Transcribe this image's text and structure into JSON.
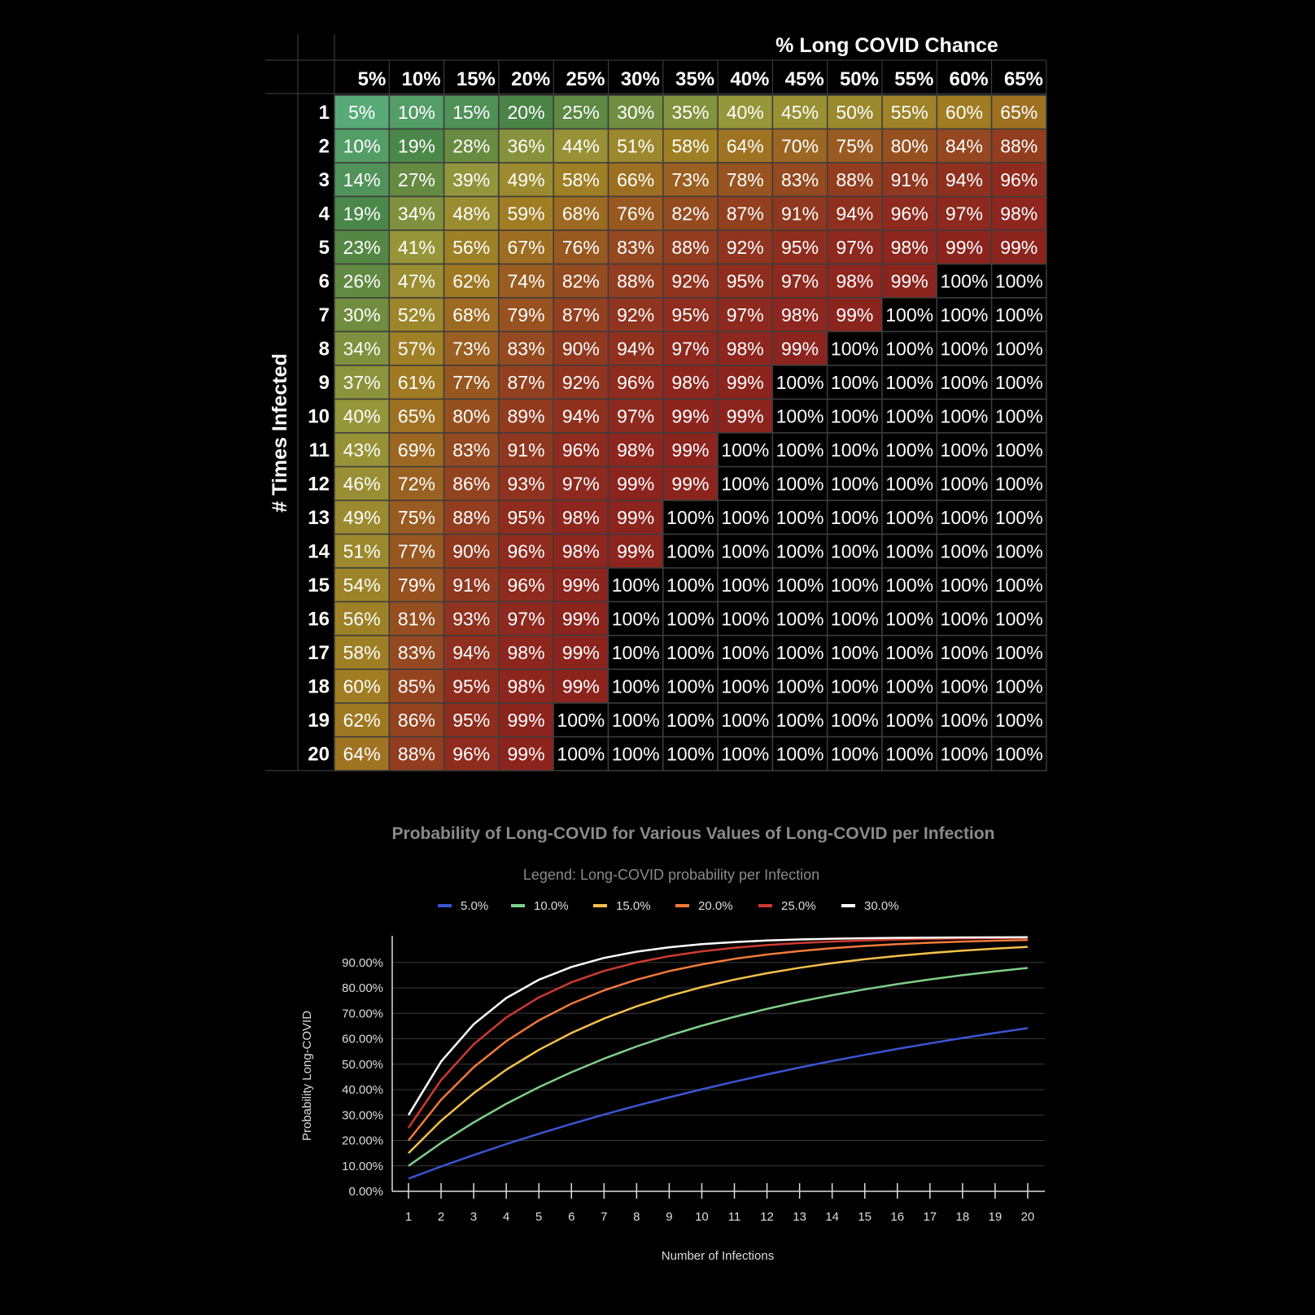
{
  "chart_data": [
    {
      "type": "heatmap",
      "title": "% Long COVID Chance",
      "ylabel": "# Times Infected",
      "columns": [
        "5%",
        "10%",
        "15%",
        "20%",
        "25%",
        "30%",
        "35%",
        "40%",
        "45%",
        "50%",
        "55%",
        "60%",
        "65%"
      ],
      "rows": [
        "1",
        "2",
        "3",
        "4",
        "5",
        "6",
        "7",
        "8",
        "9",
        "10",
        "11",
        "12",
        "13",
        "14",
        "15",
        "16",
        "17",
        "18",
        "19",
        "20"
      ],
      "values": [
        [
          "5%",
          "10%",
          "15%",
          "20%",
          "25%",
          "30%",
          "35%",
          "40%",
          "45%",
          "50%",
          "55%",
          "60%",
          "65%"
        ],
        [
          "10%",
          "19%",
          "28%",
          "36%",
          "44%",
          "51%",
          "58%",
          "64%",
          "70%",
          "75%",
          "80%",
          "84%",
          "88%"
        ],
        [
          "14%",
          "27%",
          "39%",
          "49%",
          "58%",
          "66%",
          "73%",
          "78%",
          "83%",
          "88%",
          "91%",
          "94%",
          "96%"
        ],
        [
          "19%",
          "34%",
          "48%",
          "59%",
          "68%",
          "76%",
          "82%",
          "87%",
          "91%",
          "94%",
          "96%",
          "97%",
          "98%"
        ],
        [
          "23%",
          "41%",
          "56%",
          "67%",
          "76%",
          "83%",
          "88%",
          "92%",
          "95%",
          "97%",
          "98%",
          "99%",
          "99%"
        ],
        [
          "26%",
          "47%",
          "62%",
          "74%",
          "82%",
          "88%",
          "92%",
          "95%",
          "97%",
          "98%",
          "99%",
          "100%",
          "100%"
        ],
        [
          "30%",
          "52%",
          "68%",
          "79%",
          "87%",
          "92%",
          "95%",
          "97%",
          "98%",
          "99%",
          "100%",
          "100%",
          "100%"
        ],
        [
          "34%",
          "57%",
          "73%",
          "83%",
          "90%",
          "94%",
          "97%",
          "98%",
          "99%",
          "100%",
          "100%",
          "100%",
          "100%"
        ],
        [
          "37%",
          "61%",
          "77%",
          "87%",
          "92%",
          "96%",
          "98%",
          "99%",
          "100%",
          "100%",
          "100%",
          "100%",
          "100%"
        ],
        [
          "40%",
          "65%",
          "80%",
          "89%",
          "94%",
          "97%",
          "99%",
          "99%",
          "100%",
          "100%",
          "100%",
          "100%",
          "100%"
        ],
        [
          "43%",
          "69%",
          "83%",
          "91%",
          "96%",
          "98%",
          "99%",
          "100%",
          "100%",
          "100%",
          "100%",
          "100%",
          "100%"
        ],
        [
          "46%",
          "72%",
          "86%",
          "93%",
          "97%",
          "99%",
          "99%",
          "100%",
          "100%",
          "100%",
          "100%",
          "100%",
          "100%"
        ],
        [
          "49%",
          "75%",
          "88%",
          "95%",
          "98%",
          "99%",
          "100%",
          "100%",
          "100%",
          "100%",
          "100%",
          "100%",
          "100%"
        ],
        [
          "51%",
          "77%",
          "90%",
          "96%",
          "98%",
          "99%",
          "100%",
          "100%",
          "100%",
          "100%",
          "100%",
          "100%",
          "100%"
        ],
        [
          "54%",
          "79%",
          "91%",
          "96%",
          "99%",
          "100%",
          "100%",
          "100%",
          "100%",
          "100%",
          "100%",
          "100%",
          "100%"
        ],
        [
          "56%",
          "81%",
          "93%",
          "97%",
          "99%",
          "100%",
          "100%",
          "100%",
          "100%",
          "100%",
          "100%",
          "100%",
          "100%"
        ],
        [
          "58%",
          "83%",
          "94%",
          "98%",
          "99%",
          "100%",
          "100%",
          "100%",
          "100%",
          "100%",
          "100%",
          "100%",
          "100%"
        ],
        [
          "60%",
          "85%",
          "95%",
          "98%",
          "99%",
          "100%",
          "100%",
          "100%",
          "100%",
          "100%",
          "100%",
          "100%",
          "100%"
        ],
        [
          "62%",
          "86%",
          "95%",
          "99%",
          "100%",
          "100%",
          "100%",
          "100%",
          "100%",
          "100%",
          "100%",
          "100%",
          "100%"
        ],
        [
          "64%",
          "88%",
          "96%",
          "99%",
          "100%",
          "100%",
          "100%",
          "100%",
          "100%",
          "100%",
          "100%",
          "100%",
          "100%"
        ]
      ]
    },
    {
      "type": "line",
      "title": "Probability of Long-COVID for Various Values of Long-COVID per Infection",
      "legend_title": "Legend: Long-COVID probability per Infection",
      "legend_position": "top",
      "xlabel": "Number of Infections",
      "ylabel": "Probability Long-COVID",
      "x": [
        1,
        2,
        3,
        4,
        5,
        6,
        7,
        8,
        9,
        10,
        11,
        12,
        13,
        14,
        15,
        16,
        17,
        18,
        19,
        20
      ],
      "ylim": [
        0,
        1
      ],
      "yticks": [
        "0.00%",
        "10.00%",
        "20.00%",
        "30.00%",
        "40.00%",
        "50.00%",
        "60.00%",
        "70.00%",
        "80.00%",
        "90.00%"
      ],
      "grid": true,
      "series": [
        {
          "name": "5.0%",
          "p": 0.05,
          "color": "#3b55d4"
        },
        {
          "name": "10.0%",
          "p": 0.1,
          "color": "#7fd08a"
        },
        {
          "name": "15.0%",
          "p": 0.15,
          "color": "#f5c04a"
        },
        {
          "name": "20.0%",
          "p": 0.2,
          "color": "#f07a3a"
        },
        {
          "name": "25.0%",
          "p": 0.25,
          "color": "#cf3a30"
        },
        {
          "name": "30.0%",
          "p": 0.3,
          "color": "#ffffff"
        }
      ]
    }
  ]
}
